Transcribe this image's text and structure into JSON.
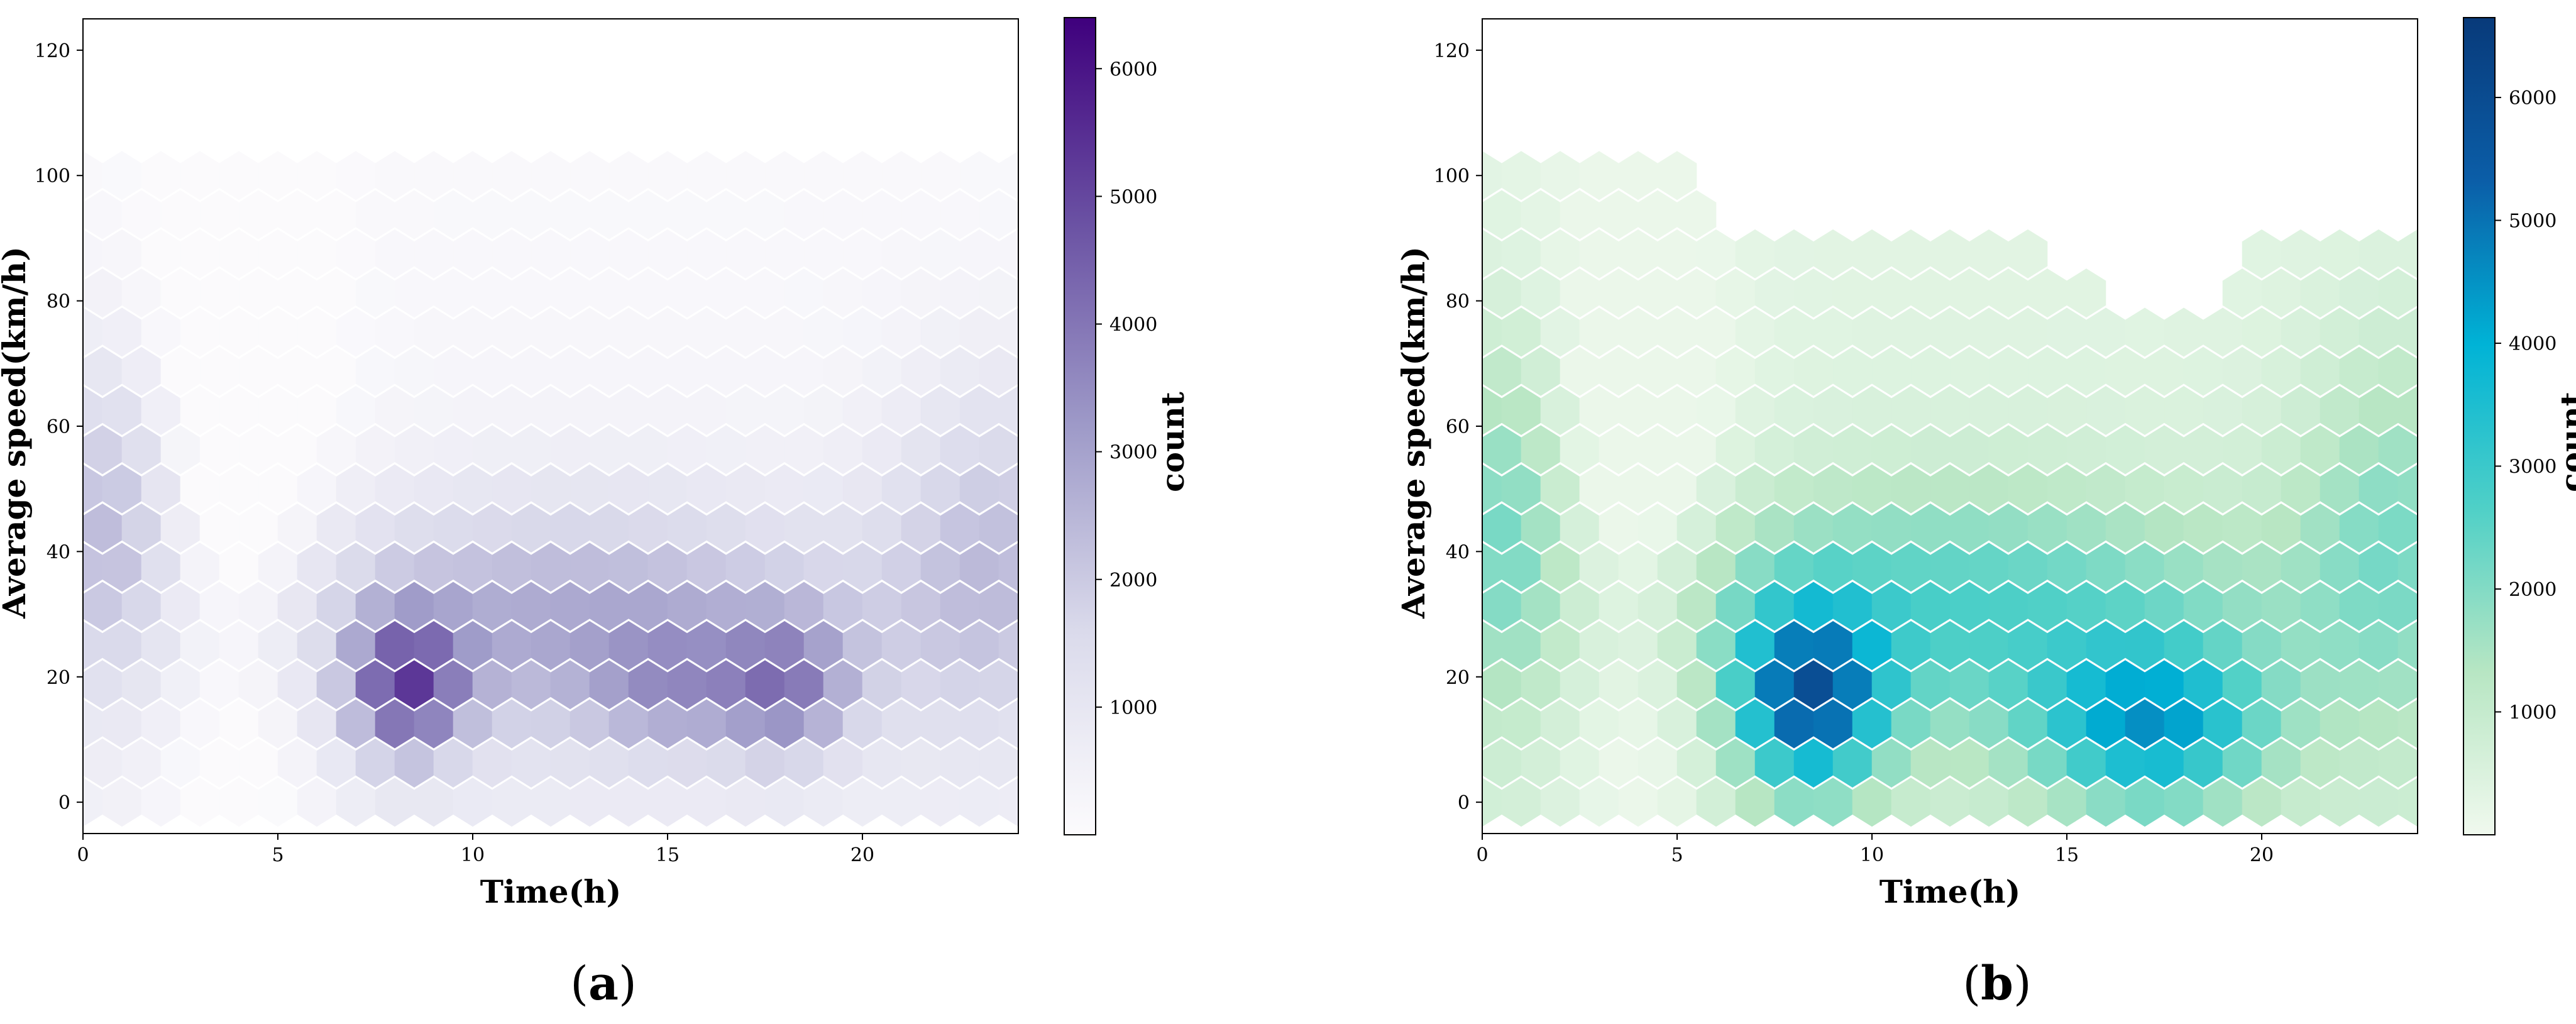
{
  "panels": [
    {
      "panel_label": "a",
      "chart_data": {
        "type": "heatmap",
        "subtype": "hexbin",
        "xlabel": "Time(h)",
        "ylabel": "Average speed(km/h)",
        "xlim": [
          0,
          24
        ],
        "ylim": [
          -5,
          125
        ],
        "xticks": [
          0,
          5,
          10,
          15,
          20
        ],
        "yticks": [
          0,
          20,
          40,
          60,
          80,
          100,
          120
        ],
        "colorbar_label": "count",
        "colorbar_range": [
          0,
          6400
        ],
        "colorbar_ticks": [
          1000,
          2000,
          3000,
          4000,
          5000,
          6000
        ],
        "colormap": "Purples",
        "colors": [
          "#fcfbfd",
          "#dadaeb",
          "#9e9ac8",
          "#6a51a3",
          "#3f007d"
        ],
        "hex_grid": {
          "x_spacing_h": 1.0,
          "y_spacing_kmh": 6.25,
          "x_range": [
            0,
            24
          ],
          "y_range": [
            0,
            100
          ]
        },
        "hotspots_note": "counts peak near 8–9 h at 15–25 km/h (about 6300) and near 17–18 h at 15–25 km/h (about 5500)"
      }
    },
    {
      "panel_label": "b",
      "chart_data": {
        "type": "heatmap",
        "subtype": "hexbin",
        "xlabel": "Time(h)",
        "ylabel": "Average speed(km/h)",
        "xlim": [
          0,
          24
        ],
        "ylim": [
          -5,
          125
        ],
        "xticks": [
          0,
          5,
          10,
          15,
          20
        ],
        "yticks": [
          0,
          20,
          40,
          60,
          80,
          100,
          120
        ],
        "colorbar_label": "count",
        "colorbar_range": [
          0,
          6650
        ],
        "colorbar_ticks": [
          1000,
          2000,
          3000,
          4000,
          5000,
          6000
        ],
        "colormap": "GnBu-like (light green → teal → dark blue)",
        "colors": [
          "#f0f9ee",
          "#b7e6c3",
          "#4fd0c7",
          "#00b3d6",
          "#0b5ea8",
          "#083a7a"
        ],
        "hex_grid": {
          "x_spacing_h": 1.0,
          "y_spacing_kmh": 6.25,
          "x_range": [
            0,
            24
          ],
          "y_range": [
            0,
            100
          ]
        },
        "hotspots_note": "counts peak near 8 h at 10–20 km/h (about 6600) and near 16–19 h at 5–20 km/h (about 5500)"
      }
    }
  ]
}
